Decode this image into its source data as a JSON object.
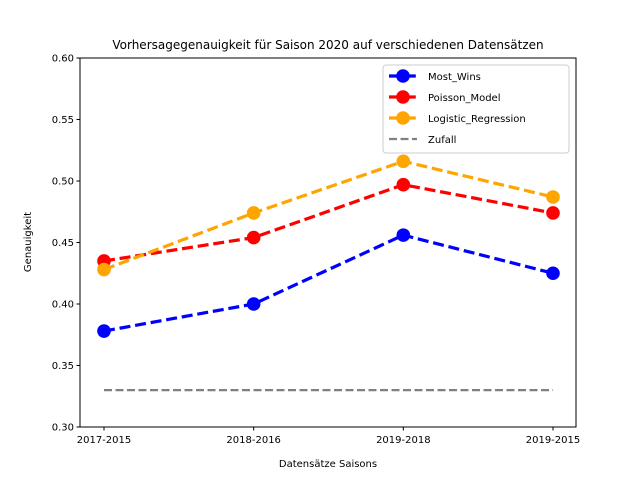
{
  "chart_data": {
    "type": "line",
    "title": "Vorhersagegenauigkeit für Saison 2020 auf verschiedenen Datensätzen",
    "xlabel": "Datensätze Saisons",
    "ylabel": "Genauigkeit",
    "categories": [
      "2017-2015",
      "2018-2016",
      "2019-2018",
      "2019-2015"
    ],
    "ylim": [
      0.3,
      0.6
    ],
    "yticks": [
      0.3,
      0.35,
      0.4,
      0.45,
      0.5,
      0.55,
      0.6
    ],
    "ytick_labels": [
      "0.30",
      "0.35",
      "0.40",
      "0.45",
      "0.50",
      "0.55",
      "0.60"
    ],
    "legend_position": "top-right",
    "grid": false,
    "series": [
      {
        "name": "Most_Wins",
        "values": [
          0.378,
          0.4,
          0.456,
          0.425
        ],
        "color": "#0000ff",
        "style": "dashed",
        "marker": "circle"
      },
      {
        "name": "Poisson_Model",
        "values": [
          0.435,
          0.454,
          0.497,
          0.474
        ],
        "color": "#ff0000",
        "style": "dashed",
        "marker": "circle"
      },
      {
        "name": "Logistic_Regression",
        "values": [
          0.428,
          0.474,
          0.516,
          0.487
        ],
        "color": "#ffa500",
        "style": "dashed",
        "marker": "circle"
      },
      {
        "name": "Zufall",
        "values": [
          0.33,
          0.33,
          0.33,
          0.33
        ],
        "color": "#808080",
        "style": "dashed",
        "marker": "none"
      }
    ]
  }
}
